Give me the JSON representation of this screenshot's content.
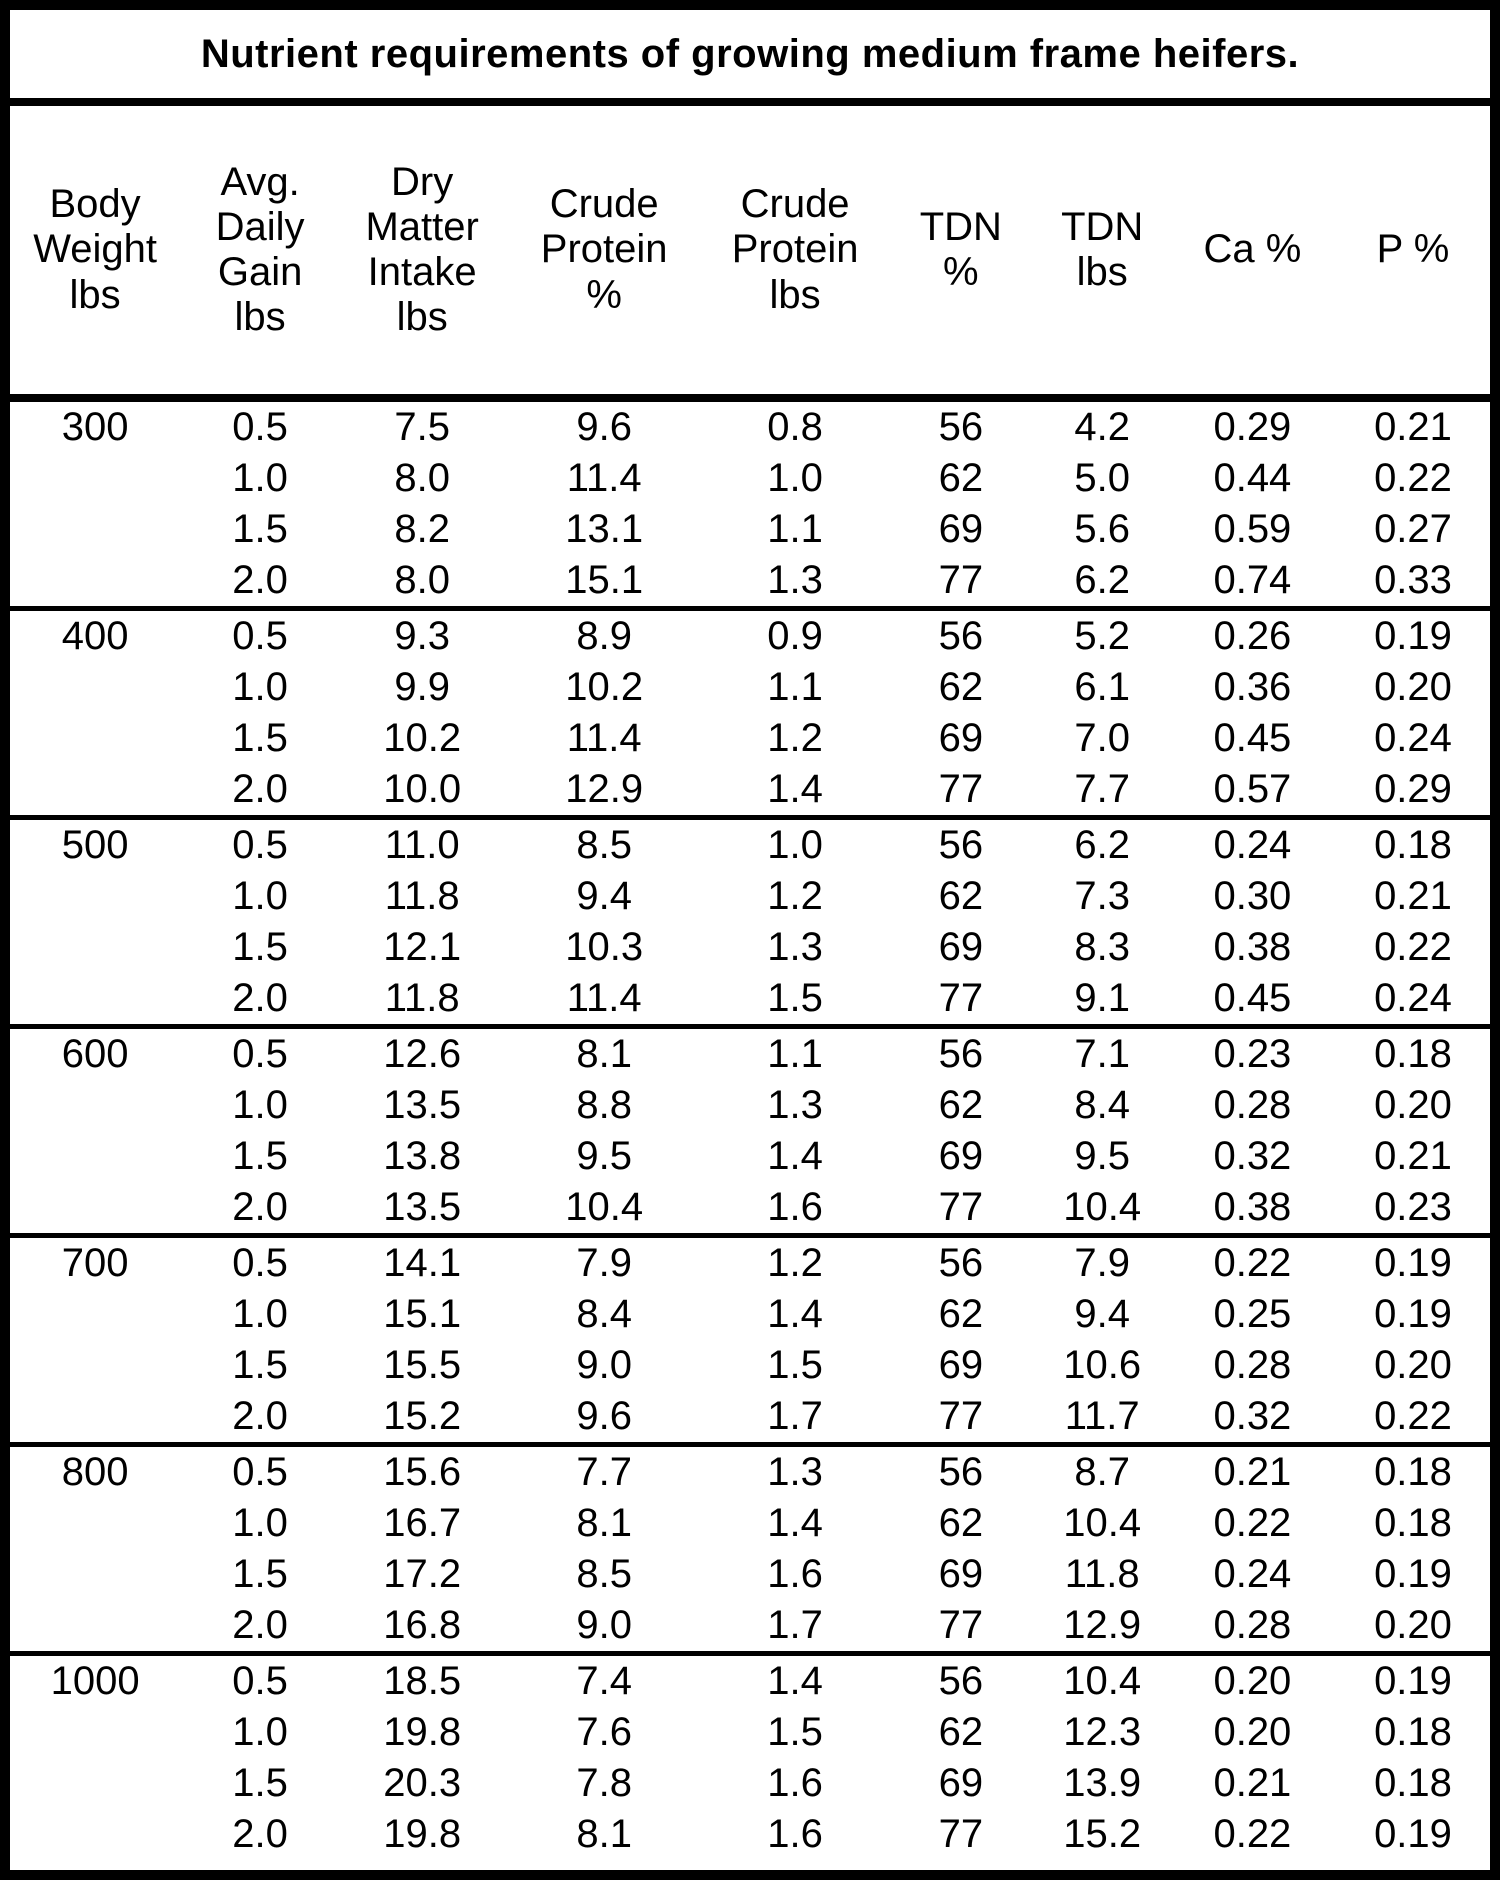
{
  "title": "Nutrient requirements of growing medium frame heifers.",
  "columns": [
    "Body\nWeight\nlbs",
    "Avg.\nDaily\nGain\nlbs",
    "Dry\nMatter\nIntake\nlbs",
    "Crude\nProtein\n%",
    "Crude\nProtein\nlbs",
    "TDN\n%",
    "TDN\nlbs",
    "Ca %",
    "P %"
  ],
  "sections": [
    {
      "body_weight": "300",
      "rows": [
        [
          "0.5",
          "7.5",
          "9.6",
          "0.8",
          "56",
          "4.2",
          "0.29",
          "0.21"
        ],
        [
          "1.0",
          "8.0",
          "11.4",
          "1.0",
          "62",
          "5.0",
          "0.44",
          "0.22"
        ],
        [
          "1.5",
          "8.2",
          "13.1",
          "1.1",
          "69",
          "5.6",
          "0.59",
          "0.27"
        ],
        [
          "2.0",
          "8.0",
          "15.1",
          "1.3",
          "77",
          "6.2",
          "0.74",
          "0.33"
        ]
      ]
    },
    {
      "body_weight": "400",
      "rows": [
        [
          "0.5",
          "9.3",
          "8.9",
          "0.9",
          "56",
          "5.2",
          "0.26",
          "0.19"
        ],
        [
          "1.0",
          "9.9",
          "10.2",
          "1.1",
          "62",
          "6.1",
          "0.36",
          "0.20"
        ],
        [
          "1.5",
          "10.2",
          "11.4",
          "1.2",
          "69",
          "7.0",
          "0.45",
          "0.24"
        ],
        [
          "2.0",
          "10.0",
          "12.9",
          "1.4",
          "77",
          "7.7",
          "0.57",
          "0.29"
        ]
      ]
    },
    {
      "body_weight": "500",
      "rows": [
        [
          "0.5",
          "11.0",
          "8.5",
          "1.0",
          "56",
          "6.2",
          "0.24",
          "0.18"
        ],
        [
          "1.0",
          "11.8",
          "9.4",
          "1.2",
          "62",
          "7.3",
          "0.30",
          "0.21"
        ],
        [
          "1.5",
          "12.1",
          "10.3",
          "1.3",
          "69",
          "8.3",
          "0.38",
          "0.22"
        ],
        [
          "2.0",
          "11.8",
          "11.4",
          "1.5",
          "77",
          "9.1",
          "0.45",
          "0.24"
        ]
      ]
    },
    {
      "body_weight": "600",
      "rows": [
        [
          "0.5",
          "12.6",
          "8.1",
          "1.1",
          "56",
          "7.1",
          "0.23",
          "0.18"
        ],
        [
          "1.0",
          "13.5",
          "8.8",
          "1.3",
          "62",
          "8.4",
          "0.28",
          "0.20"
        ],
        [
          "1.5",
          "13.8",
          "9.5",
          "1.4",
          "69",
          "9.5",
          "0.32",
          "0.21"
        ],
        [
          "2.0",
          "13.5",
          "10.4",
          "1.6",
          "77",
          "10.4",
          "0.38",
          "0.23"
        ]
      ]
    },
    {
      "body_weight": "700",
      "rows": [
        [
          "0.5",
          "14.1",
          "7.9",
          "1.2",
          "56",
          "7.9",
          "0.22",
          "0.19"
        ],
        [
          "1.0",
          "15.1",
          "8.4",
          "1.4",
          "62",
          "9.4",
          "0.25",
          "0.19"
        ],
        [
          "1.5",
          "15.5",
          "9.0",
          "1.5",
          "69",
          "10.6",
          "0.28",
          "0.20"
        ],
        [
          "2.0",
          "15.2",
          "9.6",
          "1.7",
          "77",
          "11.7",
          "0.32",
          "0.22"
        ]
      ]
    },
    {
      "body_weight": "800",
      "rows": [
        [
          "0.5",
          "15.6",
          "7.7",
          "1.3",
          "56",
          "8.7",
          "0.21",
          "0.18"
        ],
        [
          "1.0",
          "16.7",
          "8.1",
          "1.4",
          "62",
          "10.4",
          "0.22",
          "0.18"
        ],
        [
          "1.5",
          "17.2",
          "8.5",
          "1.6",
          "69",
          "11.8",
          "0.24",
          "0.19"
        ],
        [
          "2.0",
          "16.8",
          "9.0",
          "1.7",
          "77",
          "12.9",
          "0.28",
          "0.20"
        ]
      ]
    },
    {
      "body_weight": "1000",
      "rows": [
        [
          "0.5",
          "18.5",
          "7.4",
          "1.4",
          "56",
          "10.4",
          "0.20",
          "0.19"
        ],
        [
          "1.0",
          "19.8",
          "7.6",
          "1.5",
          "62",
          "12.3",
          "0.20",
          "0.18"
        ],
        [
          "1.5",
          "20.3",
          "7.8",
          "1.6",
          "69",
          "13.9",
          "0.21",
          "0.18"
        ],
        [
          "2.0",
          "19.8",
          "8.1",
          "1.6",
          "77",
          "15.2",
          "0.22",
          "0.19"
        ]
      ]
    }
  ]
}
